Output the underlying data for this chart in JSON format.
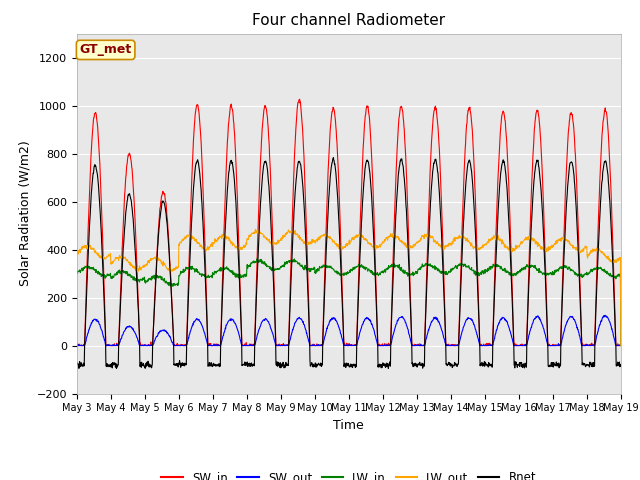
{
  "title": "Four channel Radiometer",
  "xlabel": "Time",
  "ylabel": "Solar Radiation (W/m2)",
  "ylim": [
    -200,
    1300
  ],
  "yticks": [
    -200,
    0,
    200,
    400,
    600,
    800,
    1000,
    1200
  ],
  "annotation_text": "GT_met",
  "annotation_bg": "#ffffcc",
  "annotation_border": "#cc8800",
  "fig_bg": "#ffffff",
  "plot_bg": "#e8e8e8",
  "legend_labels": [
    "SW_in",
    "SW_out",
    "LW_in",
    "LW_out",
    "Rnet"
  ],
  "legend_colors": [
    "red",
    "blue",
    "green",
    "orange",
    "black"
  ],
  "num_days": 16,
  "start_day": 3,
  "sw_in_peak": [
    970,
    800,
    640,
    1005,
    1000,
    1000,
    1025,
    990,
    995,
    995,
    990,
    990,
    975,
    980,
    970,
    980
  ],
  "sw_out_peak": [
    110,
    80,
    65,
    110,
    110,
    110,
    115,
    115,
    115,
    120,
    115,
    115,
    115,
    120,
    120,
    125
  ],
  "lw_in_day": [
    310,
    290,
    270,
    305,
    305,
    335,
    335,
    315,
    315,
    315,
    320,
    320,
    315,
    315,
    310,
    305
  ],
  "lw_out_day": [
    390,
    345,
    340,
    430,
    430,
    450,
    450,
    435,
    435,
    435,
    435,
    430,
    425,
    425,
    420,
    375
  ],
  "rnet_peak": [
    750,
    630,
    600,
    770,
    770,
    770,
    770,
    775,
    775,
    775,
    775,
    770,
    770,
    770,
    770,
    770
  ],
  "rnet_night": -80
}
